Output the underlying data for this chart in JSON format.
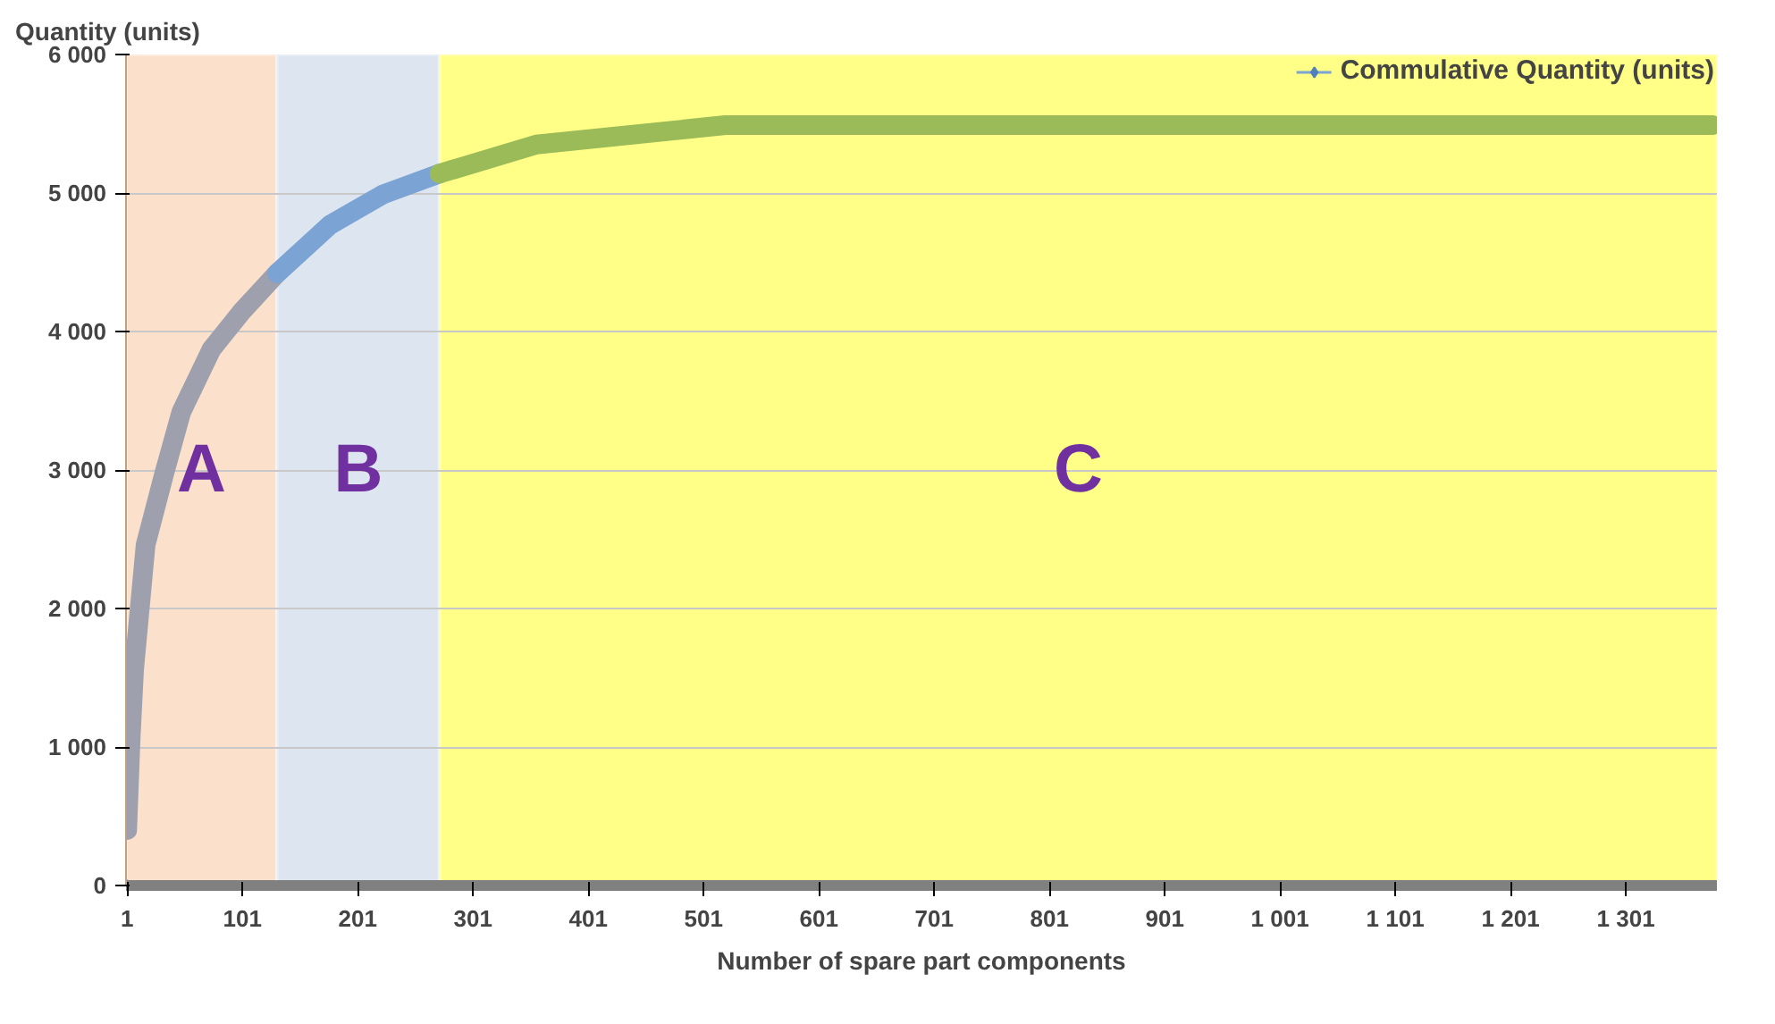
{
  "chart_data": {
    "type": "line",
    "xlabel": "Number of spare part components",
    "ylabel": "Quantity (units)",
    "xlim": [
      0,
      1380
    ],
    "ylim": [
      0,
      6000
    ],
    "xticks": [
      1,
      {
        "value": 101,
        "label": "101"
      },
      201,
      301,
      401,
      501,
      601,
      701,
      801,
      901,
      {
        "value": 1001,
        "label": "1 001"
      },
      {
        "value": 1101,
        "label": "1 101"
      },
      {
        "value": 1201,
        "label": "1 201"
      },
      {
        "value": 1301,
        "label": "1 301"
      }
    ],
    "yticks": [
      0,
      {
        "value": 1000,
        "label": "1 000"
      },
      {
        "value": 2000,
        "label": "2 000"
      },
      {
        "value": 3000,
        "label": "3 000"
      },
      {
        "value": 4000,
        "label": "4 000"
      },
      {
        "value": 5000,
        "label": "5 000"
      },
      {
        "value": 6000,
        "label": "6 000"
      }
    ],
    "grid": "y",
    "legend": "top right",
    "marker": "diamond",
    "line_style": "solid",
    "bands": [
      {
        "axis": "x",
        "from": 0,
        "to": 131,
        "label": "A",
        "color": "#fbe1cc"
      },
      {
        "axis": "x",
        "from": 131,
        "to": 272,
        "label": "B",
        "color": "#dde5f0"
      },
      {
        "axis": "x",
        "from": 272,
        "to": 1380,
        "label": "C",
        "color": "#ffff88"
      }
    ],
    "series": [
      {
        "color": "#9ea0ae",
        "x": [
          1,
          4,
          7,
          17,
          33,
          48,
          74,
          100,
          131
        ],
        "values": [
          400,
          1060,
          1560,
          2460,
          2970,
          3420,
          3870,
          4140,
          4420
        ]
      },
      {
        "name": "Commulative Quantity (units)",
        "color": "#7ba3d3",
        "x": [
          131,
          177,
          223,
          272
        ],
        "values": [
          4420,
          4770,
          4990,
          5140
        ]
      },
      {
        "color": "#9bbb59",
        "x": [
          272,
          356,
          520,
          1376
        ],
        "values": [
          5140,
          5350,
          5490,
          5490
        ]
      }
    ]
  }
}
